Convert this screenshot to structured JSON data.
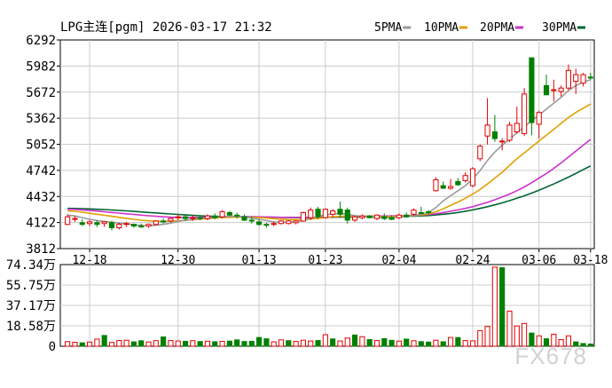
{
  "header": {
    "title": "LPG主连[pgm] 2026-03-17 21:32",
    "legend": [
      {
        "label": "5PMA",
        "color": "#9a9a9a"
      },
      {
        "label": "10PMA",
        "color": "#e0a000"
      },
      {
        "label": "20PMA",
        "color": "#cc33cc"
      },
      {
        "label": "30PMA",
        "color": "#006633"
      }
    ]
  },
  "watermark": "FX678",
  "colors": {
    "up": "#e00000",
    "down": "#008000",
    "grid": "#cccccc",
    "frame": "#000000"
  },
  "chart_data": [
    {
      "type": "candlestick",
      "title": "LPG主连[pgm] 2026-03-17 21:32",
      "y_ticks": [
        6292,
        5982,
        5672,
        5362,
        5052,
        4742,
        4432,
        4122,
        3812
      ],
      "ylim": [
        3812,
        6292
      ],
      "x_ticks": [
        "12-18",
        "12-30",
        "01-13",
        "01-23",
        "02-04",
        "02-24",
        "03-06",
        "03-18"
      ],
      "grid": true,
      "candles": [
        {
          "o": 4100,
          "h": 4220,
          "l": 4090,
          "c": 4190
        },
        {
          "o": 4160,
          "h": 4200,
          "l": 4130,
          "c": 4170
        },
        {
          "o": 4120,
          "h": 4160,
          "l": 4080,
          "c": 4100
        },
        {
          "o": 4110,
          "h": 4150,
          "l": 4080,
          "c": 4130
        },
        {
          "o": 4120,
          "h": 4150,
          "l": 4070,
          "c": 4100
        },
        {
          "o": 4110,
          "h": 4140,
          "l": 4070,
          "c": 4130
        },
        {
          "o": 4120,
          "h": 4140,
          "l": 4030,
          "c": 4060
        },
        {
          "o": 4060,
          "h": 4120,
          "l": 4040,
          "c": 4100
        },
        {
          "o": 4100,
          "h": 4130,
          "l": 4070,
          "c": 4110
        },
        {
          "o": 4100,
          "h": 4110,
          "l": 4060,
          "c": 4080
        },
        {
          "o": 4080,
          "h": 4110,
          "l": 4060,
          "c": 4070
        },
        {
          "o": 4080,
          "h": 4110,
          "l": 4060,
          "c": 4100
        },
        {
          "o": 4100,
          "h": 4150,
          "l": 4090,
          "c": 4140
        },
        {
          "o": 4140,
          "h": 4170,
          "l": 4110,
          "c": 4130
        },
        {
          "o": 4140,
          "h": 4180,
          "l": 4120,
          "c": 4170
        },
        {
          "o": 4180,
          "h": 4220,
          "l": 4150,
          "c": 4190
        },
        {
          "o": 4190,
          "h": 4220,
          "l": 4140,
          "c": 4170
        },
        {
          "o": 4170,
          "h": 4210,
          "l": 4140,
          "c": 4180
        },
        {
          "o": 4180,
          "h": 4210,
          "l": 4150,
          "c": 4170
        },
        {
          "o": 4170,
          "h": 4220,
          "l": 4150,
          "c": 4200
        },
        {
          "o": 4200,
          "h": 4230,
          "l": 4160,
          "c": 4180
        },
        {
          "o": 4190,
          "h": 4270,
          "l": 4170,
          "c": 4250
        },
        {
          "o": 4240,
          "h": 4260,
          "l": 4200,
          "c": 4210
        },
        {
          "o": 4210,
          "h": 4240,
          "l": 4170,
          "c": 4200
        },
        {
          "o": 4190,
          "h": 4220,
          "l": 4140,
          "c": 4150
        },
        {
          "o": 4150,
          "h": 4190,
          "l": 4110,
          "c": 4140
        },
        {
          "o": 4130,
          "h": 4160,
          "l": 4080,
          "c": 4100
        },
        {
          "o": 4100,
          "h": 4120,
          "l": 4060,
          "c": 4090
        },
        {
          "o": 4100,
          "h": 4130,
          "l": 4080,
          "c": 4110
        },
        {
          "o": 4110,
          "h": 4150,
          "l": 4100,
          "c": 4140
        },
        {
          "o": 4110,
          "h": 4150,
          "l": 4100,
          "c": 4140
        },
        {
          "o": 4120,
          "h": 4150,
          "l": 4100,
          "c": 4140
        },
        {
          "o": 4140,
          "h": 4250,
          "l": 4130,
          "c": 4240
        },
        {
          "o": 4180,
          "h": 4300,
          "l": 4150,
          "c": 4270
        },
        {
          "o": 4280,
          "h": 4310,
          "l": 4160,
          "c": 4190
        },
        {
          "o": 4180,
          "h": 4290,
          "l": 4170,
          "c": 4280
        },
        {
          "o": 4220,
          "h": 4280,
          "l": 4180,
          "c": 4260
        },
        {
          "o": 4280,
          "h": 4370,
          "l": 4180,
          "c": 4220
        },
        {
          "o": 4270,
          "h": 4300,
          "l": 4110,
          "c": 4150
        },
        {
          "o": 4150,
          "h": 4200,
          "l": 4130,
          "c": 4190
        },
        {
          "o": 4180,
          "h": 4220,
          "l": 4160,
          "c": 4200
        },
        {
          "o": 4200,
          "h": 4210,
          "l": 4170,
          "c": 4180
        },
        {
          "o": 4170,
          "h": 4220,
          "l": 4150,
          "c": 4210
        },
        {
          "o": 4190,
          "h": 4230,
          "l": 4150,
          "c": 4170
        },
        {
          "o": 4180,
          "h": 4210,
          "l": 4150,
          "c": 4160
        },
        {
          "o": 4180,
          "h": 4230,
          "l": 4160,
          "c": 4210
        },
        {
          "o": 4210,
          "h": 4240,
          "l": 4180,
          "c": 4190
        },
        {
          "o": 4220,
          "h": 4290,
          "l": 4200,
          "c": 4270
        },
        {
          "o": 4240,
          "h": 4310,
          "l": 4220,
          "c": 4230
        },
        {
          "o": 4250,
          "h": 4270,
          "l": 4220,
          "c": 4240
        },
        {
          "o": 4500,
          "h": 4660,
          "l": 4490,
          "c": 4630
        },
        {
          "o": 4560,
          "h": 4610,
          "l": 4520,
          "c": 4530
        },
        {
          "o": 4530,
          "h": 4640,
          "l": 4510,
          "c": 4550
        },
        {
          "o": 4610,
          "h": 4650,
          "l": 4560,
          "c": 4570
        },
        {
          "o": 4620,
          "h": 4720,
          "l": 4600,
          "c": 4680
        },
        {
          "o": 4560,
          "h": 4780,
          "l": 4540,
          "c": 4760
        },
        {
          "o": 4880,
          "h": 5050,
          "l": 4850,
          "c": 5030
        },
        {
          "o": 5150,
          "h": 5600,
          "l": 5050,
          "c": 5280
        },
        {
          "o": 5200,
          "h": 5400,
          "l": 5080,
          "c": 5120
        },
        {
          "o": 5080,
          "h": 5120,
          "l": 4980,
          "c": 5090
        },
        {
          "o": 5100,
          "h": 5320,
          "l": 5080,
          "c": 5280
        },
        {
          "o": 5200,
          "h": 5500,
          "l": 5180,
          "c": 5300
        },
        {
          "o": 5180,
          "h": 5720,
          "l": 5150,
          "c": 5650
        },
        {
          "o": 6080,
          "h": 6080,
          "l": 5160,
          "c": 5310
        },
        {
          "o": 5290,
          "h": 5450,
          "l": 5120,
          "c": 5430
        },
        {
          "o": 5750,
          "h": 5880,
          "l": 5650,
          "c": 5640
        },
        {
          "o": 5690,
          "h": 5820,
          "l": 5560,
          "c": 5700
        },
        {
          "o": 5680,
          "h": 5750,
          "l": 5620,
          "c": 5720
        },
        {
          "o": 5720,
          "h": 6000,
          "l": 5700,
          "c": 5930
        },
        {
          "o": 5800,
          "h": 5950,
          "l": 5650,
          "c": 5880
        },
        {
          "o": 5780,
          "h": 5900,
          "l": 5740,
          "c": 5880
        },
        {
          "o": 5850,
          "h": 5900,
          "l": 5820,
          "c": 5840
        }
      ],
      "ma5": [
        4210,
        4200,
        4180,
        4160,
        4145,
        4135,
        4125,
        4115,
        4105,
        4095,
        4088,
        4085,
        4090,
        4100,
        4115,
        4135,
        4150,
        4160,
        4168,
        4175,
        4182,
        4190,
        4195,
        4195,
        4188,
        4175,
        4160,
        4145,
        4130,
        4125,
        4125,
        4130,
        4145,
        4170,
        4195,
        4215,
        4225,
        4230,
        4220,
        4205,
        4195,
        4185,
        4180,
        4180,
        4182,
        4185,
        4192,
        4205,
        4220,
        4240,
        4300,
        4380,
        4440,
        4500,
        4560,
        4640,
        4740,
        4860,
        4960,
        5040,
        5110,
        5190,
        5260,
        5330,
        5400,
        5470,
        5540,
        5610,
        5690,
        5750,
        5790,
        5820
      ],
      "ma10": [
        4260,
        4255,
        4245,
        4232,
        4220,
        4208,
        4196,
        4184,
        4172,
        4160,
        4150,
        4142,
        4138,
        4136,
        4138,
        4142,
        4148,
        4155,
        4162,
        4168,
        4175,
        4180,
        4184,
        4186,
        4186,
        4184,
        4180,
        4175,
        4168,
        4162,
        4158,
        4156,
        4158,
        4164,
        4172,
        4182,
        4190,
        4195,
        4198,
        4198,
        4197,
        4195,
        4193,
        4192,
        4193,
        4195,
        4198,
        4204,
        4212,
        4222,
        4250,
        4285,
        4325,
        4365,
        4410,
        4460,
        4515,
        4580,
        4650,
        4720,
        4800,
        4880,
        4950,
        5020,
        5090,
        5160,
        5230,
        5300,
        5370,
        5430,
        5480,
        5530
      ],
      "ma20": [
        4280,
        4278,
        4272,
        4265,
        4258,
        4250,
        4242,
        4234,
        4226,
        4218,
        4210,
        4202,
        4196,
        4190,
        4186,
        4182,
        4180,
        4180,
        4182,
        4185,
        4188,
        4190,
        4192,
        4193,
        4193,
        4192,
        4190,
        4188,
        4186,
        4184,
        4182,
        4180,
        4180,
        4181,
        4183,
        4186,
        4189,
        4191,
        4193,
        4195,
        4196,
        4197,
        4198,
        4199,
        4200,
        4202,
        4204,
        4207,
        4211,
        4216,
        4226,
        4240,
        4256,
        4272,
        4290,
        4310,
        4335,
        4362,
        4392,
        4425,
        4460,
        4500,
        4545,
        4595,
        4650,
        4705,
        4765,
        4830,
        4900,
        4970,
        5040,
        5110
      ],
      "ma30": [
        4290,
        4289,
        4287,
        4284,
        4280,
        4276,
        4271,
        4266,
        4260,
        4254,
        4248,
        4242,
        4236,
        4230,
        4224,
        4218,
        4212,
        4207,
        4202,
        4198,
        4195,
        4193,
        4191,
        4190,
        4189,
        4188,
        4187,
        4186,
        4185,
        4184,
        4183,
        4182,
        4182,
        4182,
        4183,
        4184,
        4185,
        4186,
        4187,
        4188,
        4189,
        4190,
        4191,
        4192,
        4193,
        4194,
        4196,
        4198,
        4201,
        4205,
        4212,
        4220,
        4230,
        4242,
        4256,
        4272,
        4290,
        4310,
        4332,
        4356,
        4382,
        4410,
        4440,
        4472,
        4506,
        4542,
        4580,
        4620,
        4662,
        4705,
        4750,
        4795
      ]
    },
    {
      "type": "bar",
      "y_ticks": [
        "74.34万",
        "55.75万",
        "37.17万",
        "18.58万",
        "0"
      ],
      "ylim": [
        0,
        74.34
      ],
      "values": [
        4.2,
        3.6,
        3.1,
        3.8,
        6.5,
        9.8,
        3.5,
        5.2,
        5.5,
        4.0,
        5.0,
        3.9,
        5.1,
        8.5,
        5.2,
        4.8,
        4.5,
        5.1,
        4.3,
        4.6,
        4.1,
        4.5,
        4.7,
        5.8,
        4.3,
        4.5,
        8.0,
        6.8,
        4.0,
        5.8,
        5.1,
        4.4,
        5.5,
        4.8,
        5.2,
        10.5,
        6.7,
        4.8,
        7.5,
        10.2,
        8.7,
        6.1,
        5.2,
        6.9,
        5.4,
        4.7,
        6.5,
        5.0,
        4.2,
        3.8,
        5.5,
        4.1,
        8.0,
        7.9,
        5.2,
        4.9,
        14.2,
        18.0,
        72.0,
        71.5,
        32.0,
        18.5,
        20.8,
        12.0,
        9.5,
        6.8,
        11.0,
        6.1,
        9.5,
        4.0,
        2.5,
        2.0
      ],
      "up": [
        1,
        1,
        0,
        1,
        1,
        0,
        1,
        1,
        1,
        0,
        0,
        1,
        1,
        0,
        1,
        1,
        0,
        1,
        0,
        1,
        0,
        1,
        0,
        0,
        0,
        0,
        0,
        0,
        1,
        1,
        0,
        1,
        1,
        1,
        0,
        1,
        0,
        1,
        1,
        0,
        1,
        0,
        1,
        0,
        0,
        1,
        0,
        1,
        0,
        0,
        1,
        0,
        1,
        0,
        1,
        1,
        1,
        1,
        1,
        0,
        1,
        1,
        1,
        0,
        1,
        0,
        1,
        1,
        1,
        0,
        0,
        0
      ]
    }
  ]
}
